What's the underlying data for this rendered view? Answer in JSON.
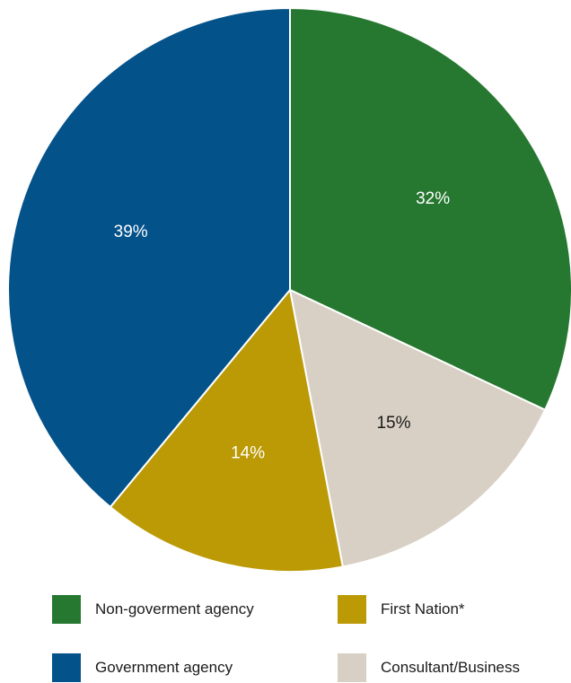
{
  "chart_data": {
    "type": "pie",
    "title": "",
    "categories": [
      "Non-goverment agency",
      "Consultant/Business",
      "First Nation*",
      "Government agency"
    ],
    "values": [
      32,
      15,
      14,
      39
    ],
    "labels": [
      "32%",
      "15%",
      "14%",
      "39%"
    ],
    "colors": [
      "#267830",
      "#d8d0c4",
      "#bb9a06",
      "#04528a"
    ],
    "label_colors": [
      "#ffffff",
      "#1a1a1a",
      "#ffffff",
      "#ffffff"
    ],
    "legend_placement": "bottom"
  },
  "legend": {
    "items": [
      {
        "label": "Non-goverment agency",
        "color": "#267830"
      },
      {
        "label": "First Nation*",
        "color": "#bb9a06"
      },
      {
        "label": "Government agency",
        "color": "#04528a"
      },
      {
        "label": "Consultant/Business",
        "color": "#d8d0c4"
      }
    ]
  }
}
